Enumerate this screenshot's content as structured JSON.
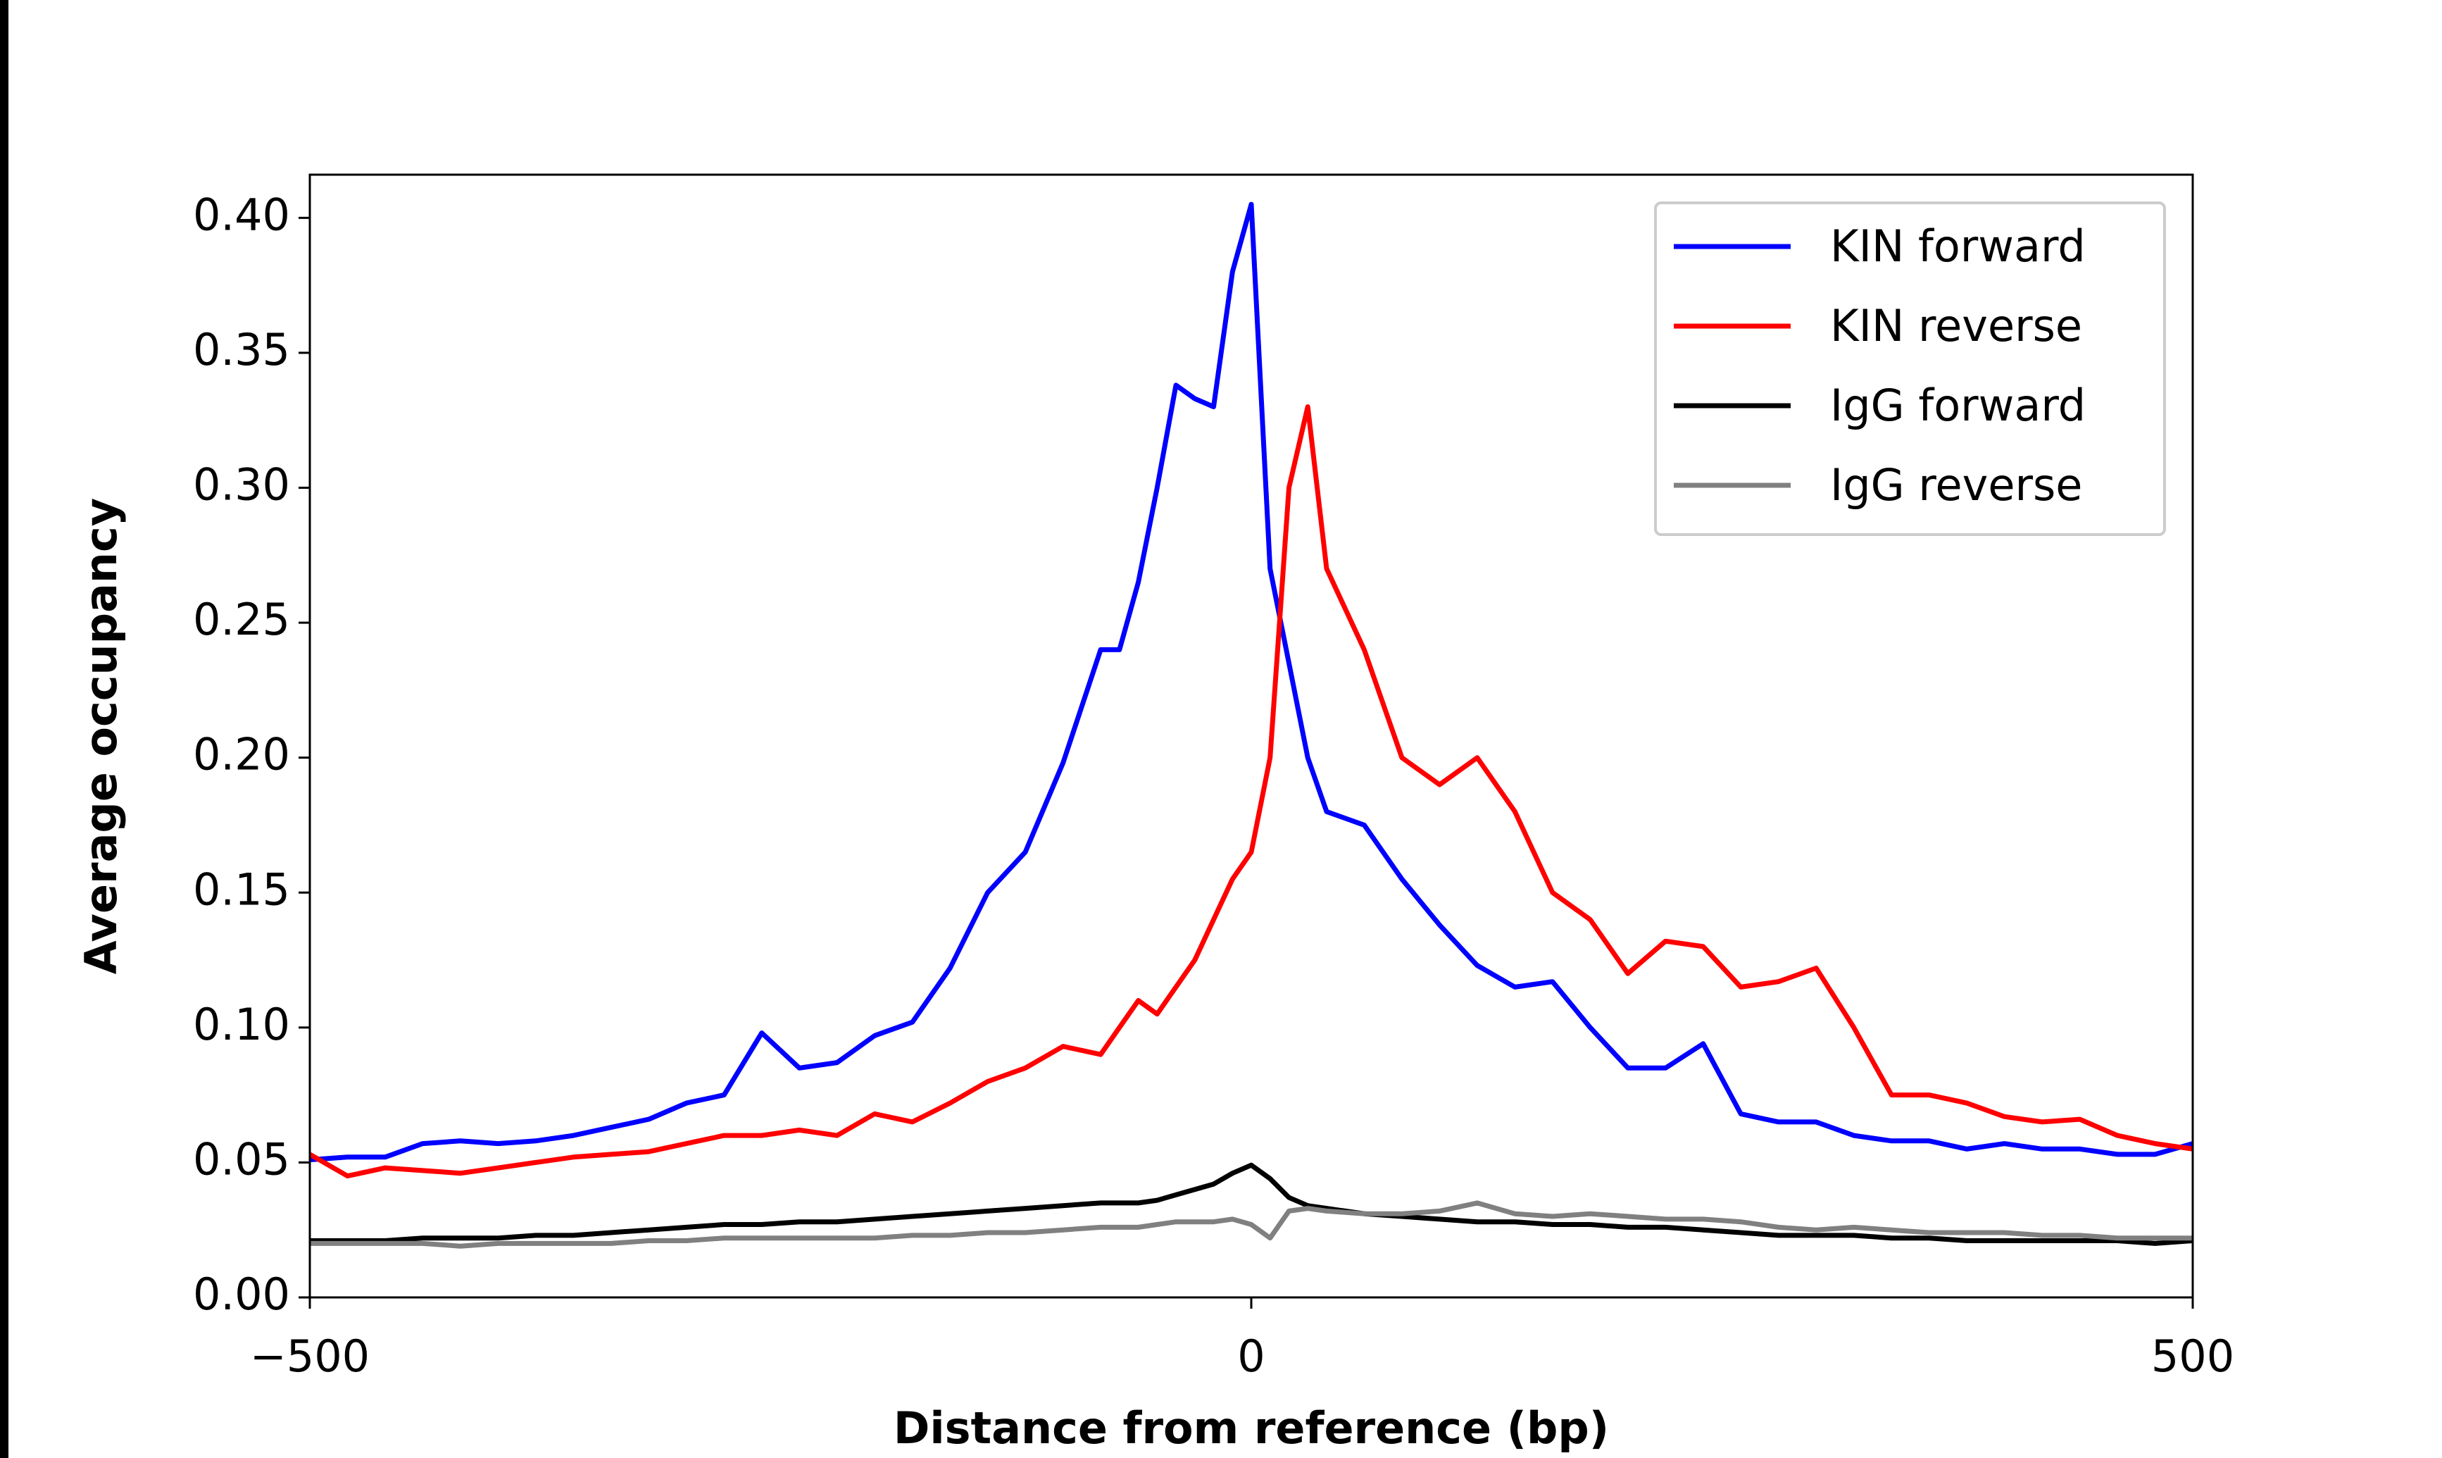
{
  "chart_data": {
    "type": "line",
    "xlabel": "Distance from reference (bp)",
    "ylabel": "Average occupancy",
    "x": [
      -500,
      -480,
      -460,
      -440,
      -420,
      -400,
      -380,
      -360,
      -340,
      -320,
      -300,
      -280,
      -260,
      -240,
      -220,
      -200,
      -180,
      -160,
      -140,
      -120,
      -100,
      -80,
      -70,
      -60,
      -50,
      -40,
      -30,
      -20,
      -10,
      0,
      10,
      20,
      30,
      40,
      60,
      80,
      100,
      120,
      140,
      160,
      180,
      200,
      220,
      240,
      260,
      280,
      300,
      320,
      340,
      360,
      380,
      400,
      420,
      440,
      460,
      480,
      500
    ],
    "series": [
      {
        "name": "KIN forward",
        "color": "#0000ff",
        "values": [
          0.051,
          0.052,
          0.052,
          0.057,
          0.058,
          0.057,
          0.058,
          0.06,
          0.063,
          0.066,
          0.072,
          0.075,
          0.098,
          0.085,
          0.087,
          0.097,
          0.102,
          0.122,
          0.15,
          0.165,
          0.198,
          0.24,
          0.24,
          0.265,
          0.3,
          0.338,
          0.333,
          0.33,
          0.38,
          0.405,
          0.27,
          0.235,
          0.2,
          0.18,
          0.175,
          0.155,
          0.138,
          0.123,
          0.115,
          0.117,
          0.1,
          0.085,
          0.085,
          0.094,
          0.068,
          0.065,
          0.065,
          0.06,
          0.058,
          0.058,
          0.055,
          0.057,
          0.055,
          0.055,
          0.053,
          0.053,
          0.057
        ]
      },
      {
        "name": "KIN reverse",
        "color": "#ff0000",
        "values": [
          0.053,
          0.045,
          0.048,
          0.047,
          0.046,
          0.048,
          0.05,
          0.052,
          0.053,
          0.054,
          0.057,
          0.06,
          0.06,
          0.062,
          0.06,
          0.068,
          0.065,
          0.072,
          0.08,
          0.085,
          0.093,
          0.09,
          0.1,
          0.11,
          0.105,
          0.115,
          0.125,
          0.14,
          0.155,
          0.165,
          0.2,
          0.3,
          0.33,
          0.27,
          0.24,
          0.2,
          0.19,
          0.2,
          0.18,
          0.15,
          0.14,
          0.12,
          0.132,
          0.13,
          0.115,
          0.117,
          0.122,
          0.1,
          0.075,
          0.075,
          0.072,
          0.067,
          0.065,
          0.066,
          0.06,
          0.057,
          0.055
        ]
      },
      {
        "name": "IgG forward",
        "color": "#000000",
        "values": [
          0.021,
          0.021,
          0.021,
          0.022,
          0.022,
          0.022,
          0.023,
          0.023,
          0.024,
          0.025,
          0.026,
          0.027,
          0.027,
          0.028,
          0.028,
          0.029,
          0.03,
          0.031,
          0.032,
          0.033,
          0.034,
          0.035,
          0.035,
          0.035,
          0.036,
          0.038,
          0.04,
          0.042,
          0.046,
          0.049,
          0.044,
          0.037,
          0.034,
          0.033,
          0.031,
          0.03,
          0.029,
          0.028,
          0.028,
          0.027,
          0.027,
          0.026,
          0.026,
          0.025,
          0.024,
          0.023,
          0.023,
          0.023,
          0.022,
          0.022,
          0.021,
          0.021,
          0.021,
          0.021,
          0.021,
          0.02,
          0.021
        ]
      },
      {
        "name": "IgG reverse",
        "color": "#808080",
        "values": [
          0.02,
          0.02,
          0.02,
          0.02,
          0.019,
          0.02,
          0.02,
          0.02,
          0.02,
          0.021,
          0.021,
          0.022,
          0.022,
          0.022,
          0.022,
          0.022,
          0.023,
          0.023,
          0.024,
          0.024,
          0.025,
          0.026,
          0.026,
          0.026,
          0.027,
          0.028,
          0.028,
          0.028,
          0.029,
          0.027,
          0.022,
          0.032,
          0.033,
          0.032,
          0.031,
          0.031,
          0.032,
          0.035,
          0.031,
          0.03,
          0.031,
          0.03,
          0.029,
          0.029,
          0.028,
          0.026,
          0.025,
          0.026,
          0.025,
          0.024,
          0.024,
          0.024,
          0.023,
          0.023,
          0.022,
          0.022,
          0.022
        ]
      }
    ],
    "xlim": [
      -500,
      500
    ],
    "xticks": [
      {
        "value": -500,
        "label": "−500"
      },
      0,
      500
    ],
    "ylim": [
      0,
      0.416
    ],
    "yticks": [
      {
        "value": 0,
        "label": "0.00"
      },
      0.05,
      {
        "value": 0.1,
        "label": "0.10"
      },
      0.15,
      {
        "value": 0.2,
        "label": "0.20"
      },
      0.25,
      {
        "value": 0.3,
        "label": "0.30"
      },
      0.35,
      {
        "value": 0.4,
        "label": "0.40"
      }
    ],
    "legend": "upper right"
  }
}
